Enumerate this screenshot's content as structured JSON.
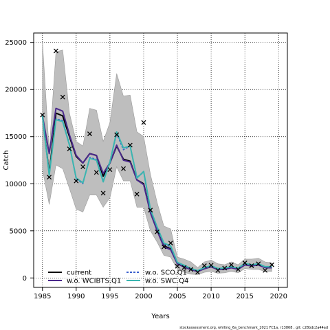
{
  "chart_data": {
    "type": "line",
    "xlabel": "Years",
    "ylabel": "Catch",
    "xlim": [
      1983.7,
      2021.3
    ],
    "ylim": [
      -1000,
      26000
    ],
    "xticks": [
      1985,
      1990,
      1995,
      2000,
      2005,
      2010,
      2015,
      2020
    ],
    "yticks": [
      0,
      5000,
      10000,
      15000,
      20000,
      25000
    ],
    "grid": true,
    "legend_position": "bottom-left",
    "years": [
      1985,
      1986,
      1987,
      1988,
      1989,
      1990,
      1991,
      1992,
      1993,
      1994,
      1995,
      1996,
      1997,
      1998,
      1999,
      2000,
      2001,
      2002,
      2003,
      2004,
      2005,
      2006,
      2007,
      2008,
      2009,
      2010,
      2011,
      2012,
      2013,
      2014,
      2015,
      2016,
      2017,
      2018,
      2019
    ],
    "band": {
      "upper": [
        25000,
        13500,
        24000,
        24200,
        17500,
        14500,
        14000,
        18000,
        17800,
        14500,
        16500,
        21700,
        19300,
        19400,
        15500,
        15000,
        11000,
        8000,
        5500,
        5200,
        2200,
        2000,
        1700,
        1100,
        1700,
        1900,
        1500,
        1400,
        1700,
        1400,
        2000,
        2000,
        2100,
        1700,
        1600
      ],
      "lower": [
        11500,
        7800,
        12000,
        11600,
        9500,
        7300,
        7000,
        8800,
        8800,
        7500,
        8500,
        11800,
        10300,
        10300,
        7500,
        7500,
        5000,
        3800,
        2400,
        2200,
        900,
        600,
        400,
        350,
        600,
        700,
        500,
        550,
        700,
        550,
        1000,
        900,
        900,
        700,
        700
      ]
    },
    "series": [
      {
        "name": "current",
        "color": "#000000",
        "dash": "",
        "values": [
          17200,
          11100,
          17500,
          17200,
          15000,
          12900,
          12200,
          13200,
          13000,
          10800,
          12200,
          14000,
          12600,
          12400,
          10400,
          10000,
          7000,
          5100,
          3400,
          3100,
          1500,
          1200,
          900,
          700,
          1000,
          1200,
          900,
          950,
          1100,
          950,
          1400,
          1300,
          1400,
          1100,
          1100
        ]
      },
      {
        "name": "w.o. SCO.Q1",
        "color": "#3a5fcd",
        "dash": "3,2",
        "values": [
          17200,
          11000,
          16900,
          16700,
          14200,
          10500,
          10000,
          12800,
          12600,
          10300,
          12400,
          15300,
          13600,
          14000,
          10700,
          11200,
          7200,
          5300,
          3600,
          3300,
          1600,
          1300,
          950,
          750,
          1050,
          1250,
          950,
          1000,
          1150,
          1000,
          1500,
          1350,
          1450,
          1150,
          1150
        ]
      },
      {
        "name": "w.o. WCIBTS.Q1",
        "color": "#4b2a8c",
        "dash": "",
        "values": [
          17200,
          13200,
          18000,
          17700,
          15200,
          13000,
          12200,
          13200,
          13000,
          11100,
          12200,
          14100,
          12500,
          12300,
          10400,
          9900,
          6900,
          5000,
          3300,
          3000,
          1500,
          1150,
          880,
          680,
          980,
          1180,
          880,
          930,
          1080,
          930,
          1380,
          1280,
          1380,
          1080,
          1080
        ]
      },
      {
        "name": "w.o. SWC.Q4",
        "color": "#3ab5b0",
        "dash": "",
        "values": [
          17200,
          10900,
          16800,
          16600,
          14100,
          10600,
          10100,
          12700,
          12500,
          10200,
          12300,
          15500,
          13800,
          14000,
          10600,
          11300,
          7300,
          5400,
          3700,
          3400,
          1650,
          1350,
          1000,
          780,
          1100,
          1300,
          1000,
          1050,
          1200,
          1050,
          1550,
          1400,
          1500,
          1200,
          1200
        ]
      }
    ],
    "observed": {
      "years": [
        1985,
        1986,
        1987,
        1988,
        1989,
        1990,
        1991,
        1992,
        1993,
        1994,
        1995,
        1996,
        1997,
        1998,
        1999,
        2000,
        2001,
        2002,
        2003,
        2004,
        2005,
        2006,
        2007,
        2008,
        2009,
        2010,
        2011,
        2012,
        2013,
        2014,
        2015,
        2016,
        2017,
        2018,
        2019
      ],
      "values": [
        17300,
        10700,
        24100,
        19200,
        13700,
        10300,
        11800,
        15300,
        11200,
        9000,
        11500,
        15200,
        11600,
        14100,
        8900,
        16500,
        7200,
        4900,
        3300,
        3700,
        1250,
        1100,
        900,
        600,
        1300,
        1350,
        800,
        1050,
        1400,
        900,
        1600,
        1300,
        1500,
        800,
        1400
      ]
    },
    "legend": {
      "items": [
        "current",
        "w.o. SCO.Q1",
        "w.o. WCIBTS.Q1",
        "w.o. SWC.Q4"
      ]
    }
  },
  "footnote": "stockassessment.org, whiting_6a_benchmark_2021 FC1a, r13868 , git: c28bdc2a44ad"
}
